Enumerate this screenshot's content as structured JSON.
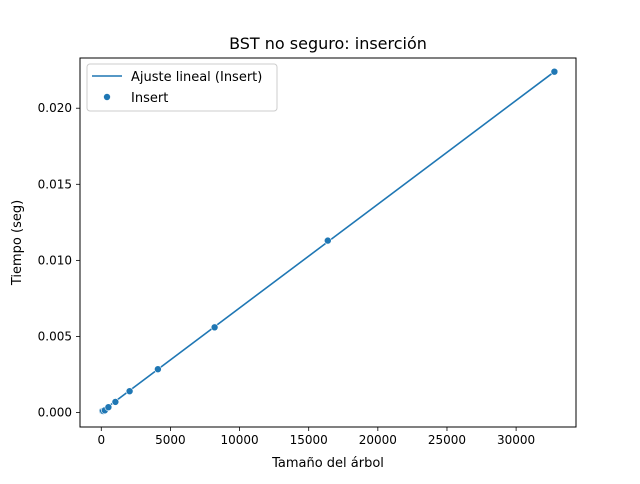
{
  "chart_data": {
    "type": "scatter",
    "title": "BST no seguro: inserción",
    "xlabel": "Tamaño del árbol",
    "ylabel": "Tiempo (seg)",
    "xlim": [
      -1539,
      34331
    ],
    "ylim": [
      -0.00095,
      0.0233
    ],
    "x_ticks": [
      0,
      5000,
      10000,
      15000,
      20000,
      25000,
      30000
    ],
    "x_tick_labels": [
      "0",
      "5000",
      "10000",
      "15000",
      "20000",
      "25000",
      "30000"
    ],
    "y_ticks": [
      0.0,
      0.005,
      0.01,
      0.015,
      0.02
    ],
    "y_tick_labels": [
      "0.000",
      "0.005",
      "0.010",
      "0.015",
      "0.020"
    ],
    "grid": false,
    "legend_position": "top-left",
    "series": [
      {
        "name": "Ajuste lineal (Insert)",
        "kind": "line",
        "color": "#1f77b4",
        "x": [
          0,
          32768
        ],
        "y": [
          5e-05,
          0.0224
        ]
      },
      {
        "name": "Insert",
        "kind": "scatter",
        "color": "#1f77b4",
        "x": [
          64,
          128,
          256,
          512,
          1024,
          2048,
          4096,
          8192,
          16384,
          32768
        ],
        "y": [
          0.0001,
          0.0001,
          0.00015,
          0.00035,
          0.0007,
          0.0014,
          0.00285,
          0.0056,
          0.0113,
          0.0224
        ]
      }
    ]
  }
}
